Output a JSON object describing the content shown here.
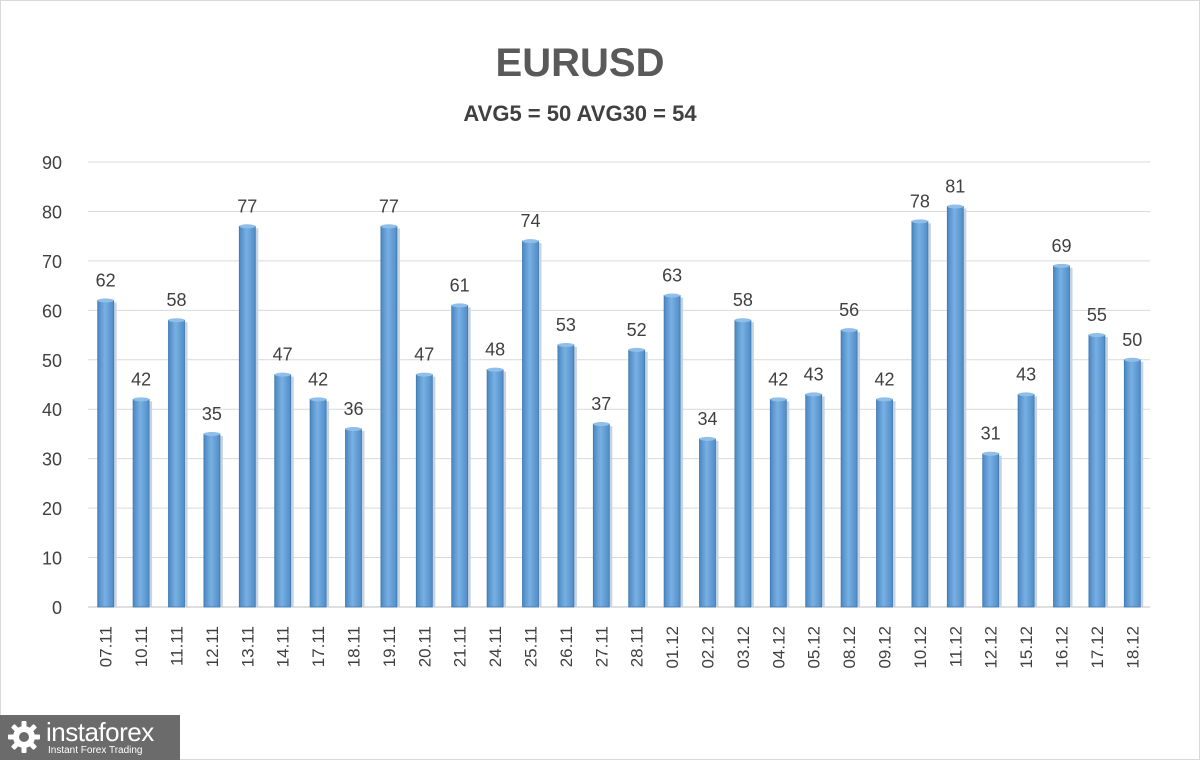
{
  "chart_data": {
    "type": "bar",
    "title": "EURUSD",
    "subtitle": "AVG5 = 50 AVG30 = 54",
    "xlabel": "",
    "ylabel": "",
    "ylim": [
      0,
      90
    ],
    "yticks": [
      0,
      10,
      20,
      30,
      40,
      50,
      60,
      70,
      80,
      90
    ],
    "grid": true,
    "legend": "none",
    "bar_color": "#5b9bd5",
    "categories": [
      "07.11",
      "10.11",
      "11.11",
      "12.11",
      "13.11",
      "14.11",
      "17.11",
      "18.11",
      "19.11",
      "20.11",
      "21.11",
      "24.11",
      "25.11",
      "26.11",
      "27.11",
      "28.11",
      "01.12",
      "02.12",
      "03.12",
      "04.12",
      "05.12",
      "08.12",
      "09.12",
      "10.12",
      "11.12",
      "12.12",
      "15.12",
      "16.12",
      "17.12",
      "18.12"
    ],
    "values": [
      62,
      42,
      58,
      35,
      77,
      47,
      42,
      36,
      77,
      47,
      61,
      48,
      74,
      53,
      37,
      52,
      63,
      34,
      58,
      42,
      43,
      56,
      42,
      78,
      81,
      31,
      43,
      69,
      55,
      50
    ]
  },
  "watermark": {
    "brand": "instaforex",
    "tagline": "Instant Forex Trading",
    "icon": "gear-icon"
  }
}
